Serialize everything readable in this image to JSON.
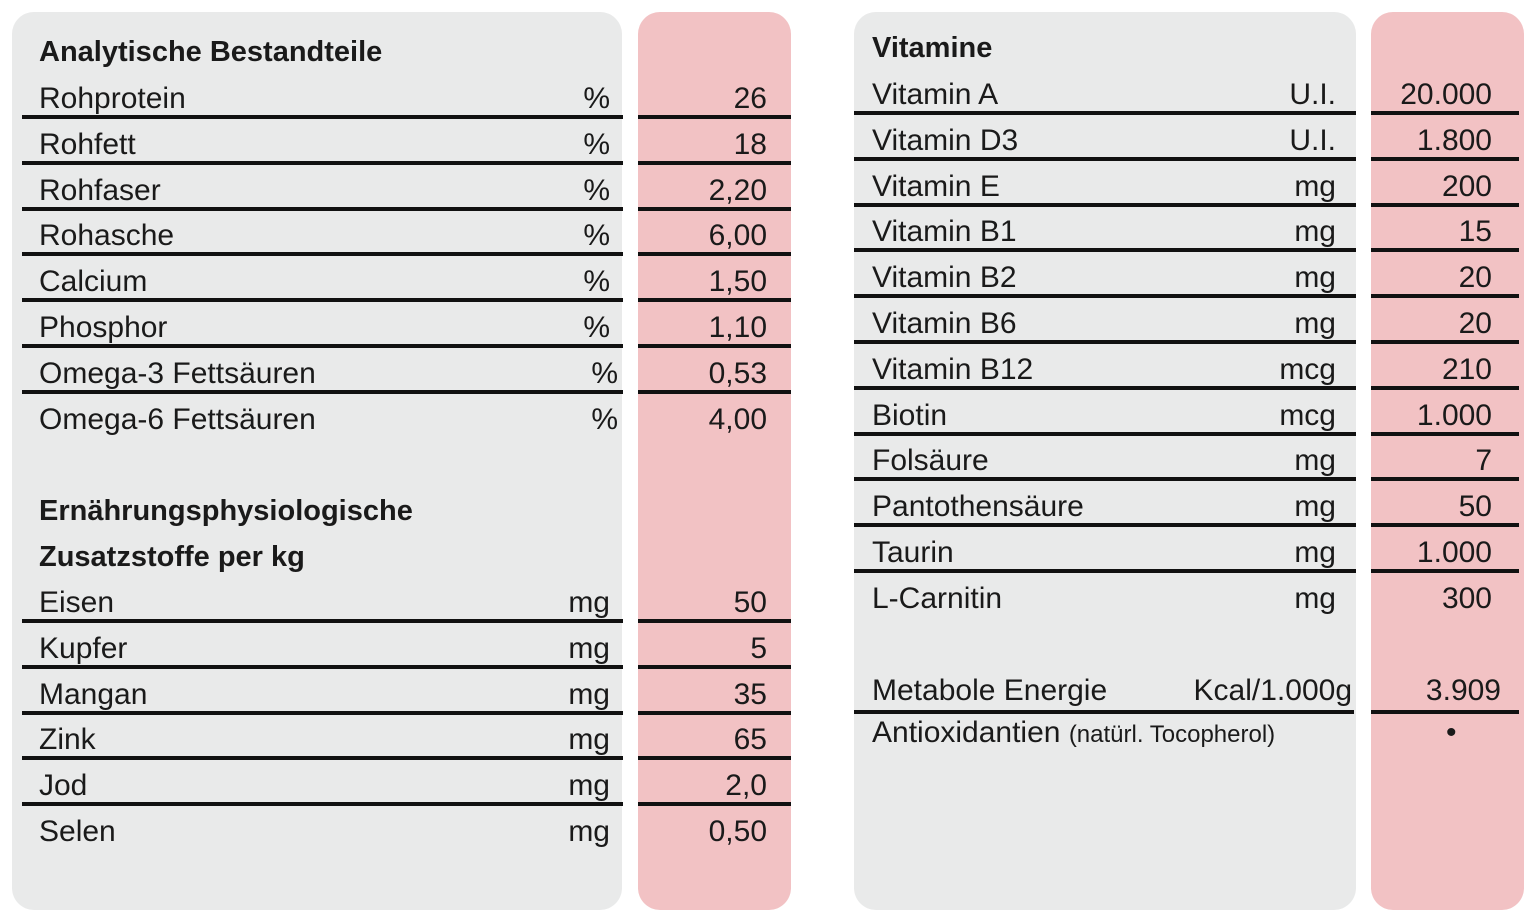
{
  "left_table": {
    "section1_title": "Analytische Bestandteile",
    "section1_rows": [
      {
        "name": "Rohprotein",
        "unit": "%",
        "value": "26"
      },
      {
        "name": "Rohfett",
        "unit": "%",
        "value": "18"
      },
      {
        "name": "Rohfaser",
        "unit": "%",
        "value": "2,20"
      },
      {
        "name": "Rohasche",
        "unit": "%",
        "value": "6,00"
      },
      {
        "name": "Calcium",
        "unit": "%",
        "value": "1,50"
      },
      {
        "name": "Phosphor",
        "unit": "%",
        "value": "1,10"
      },
      {
        "name": "Omega-3 Fettsäuren",
        "unit": "%",
        "value": "0,53"
      },
      {
        "name": "Omega-6 Fettsäuren",
        "unit": "%",
        "value": "4,00"
      }
    ],
    "section2_title_line1": "Ernährungsphysiologische",
    "section2_title_line2": "Zusatzstoffe per kg",
    "section2_rows": [
      {
        "name": "Eisen",
        "unit": "mg",
        "value": "50"
      },
      {
        "name": "Kupfer",
        "unit": "mg",
        "value": "5"
      },
      {
        "name": "Mangan",
        "unit": "mg",
        "value": "35"
      },
      {
        "name": "Zink",
        "unit": "mg",
        "value": "65"
      },
      {
        "name": "Jod",
        "unit": "mg",
        "value": "2,0"
      },
      {
        "name": "Selen",
        "unit": "mg",
        "value": "0,50"
      }
    ]
  },
  "right_table": {
    "title": "Vitamine",
    "rows": [
      {
        "name": "Vitamin A",
        "unit": "U.I.",
        "value": "20.000"
      },
      {
        "name": "Vitamin D3",
        "unit": "U.I.",
        "value": "1.800"
      },
      {
        "name": "Vitamin E",
        "unit": "mg",
        "value": "200"
      },
      {
        "name": "Vitamin B1",
        "unit": "mg",
        "value": "15"
      },
      {
        "name": "Vitamin B2",
        "unit": "mg",
        "value": "20"
      },
      {
        "name": "Vitamin B6",
        "unit": "mg",
        "value": "20"
      },
      {
        "name": "Vitamin B12",
        "unit": "mcg",
        "value": "210"
      },
      {
        "name": "Biotin",
        "unit": "mcg",
        "value": "1.000"
      },
      {
        "name": "Folsäure",
        "unit": "mg",
        "value": "7"
      },
      {
        "name": "Pantothensäure",
        "unit": "mg",
        "value": "50"
      },
      {
        "name": "Taurin",
        "unit": "mg",
        "value": "1.000"
      },
      {
        "name": "L-Carnitin",
        "unit": "mg",
        "value": "300"
      }
    ],
    "energy": {
      "name": "Metabole Energie",
      "unit": "Kcal/1.000g",
      "value": "3.909"
    },
    "antioxidants": {
      "name": "Antioxidantien",
      "note": "(natürl. Tocopherol)",
      "value": "•"
    }
  },
  "colors": {
    "gray_panel": "#e9eaea",
    "pink_panel": "#f2c2c4",
    "rule": "#111111"
  }
}
